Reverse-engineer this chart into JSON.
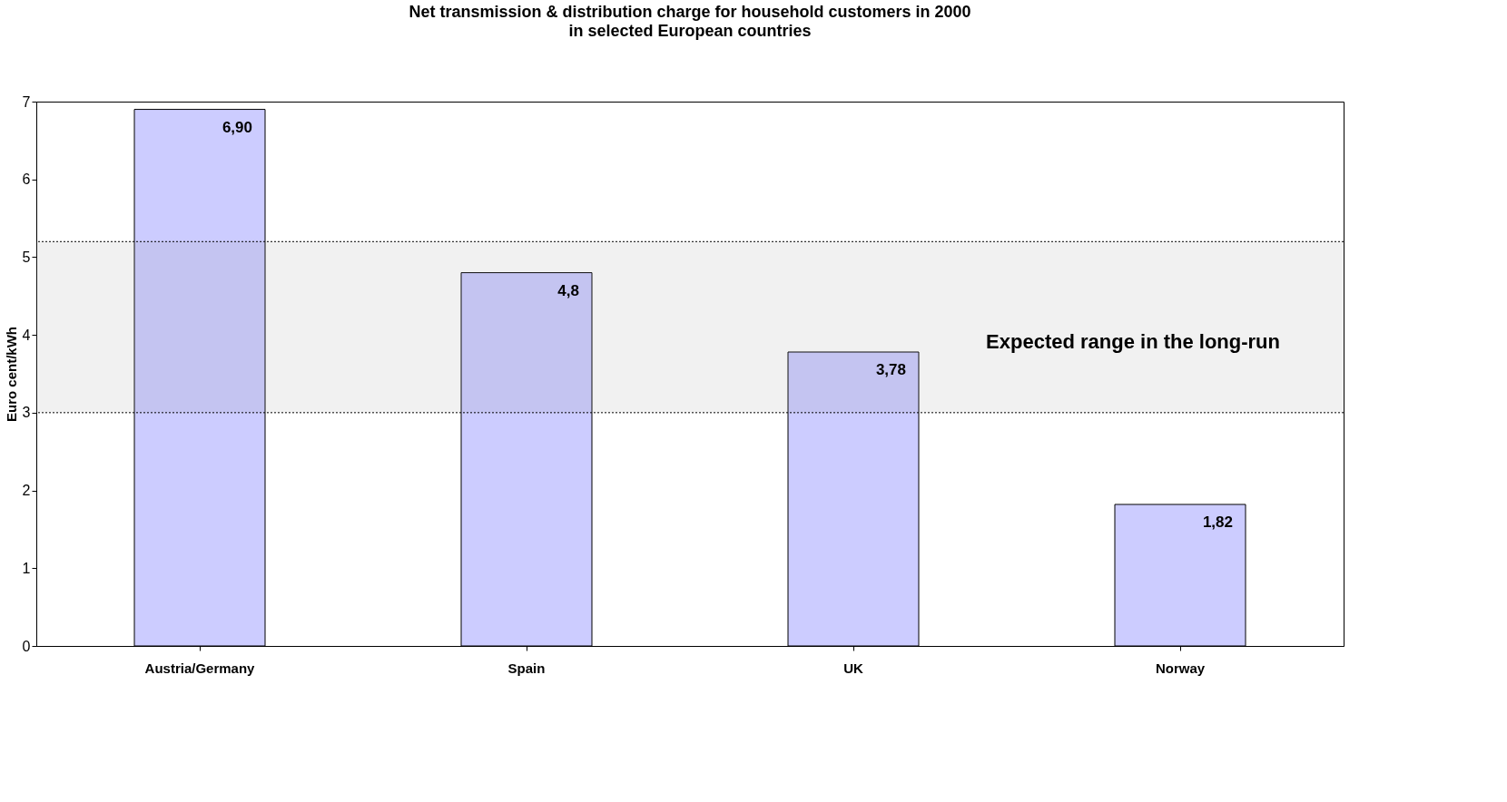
{
  "chart_data": {
    "type": "bar",
    "title": "Net transmission & distribution charge for household customers in 2000",
    "subtitle": "in selected European countries",
    "ylabel": "Euro cent/kWh",
    "categories": [
      "Austria/Germany",
      "Spain",
      "UK",
      "Norway"
    ],
    "values": [
      6.9,
      4.8,
      3.78,
      1.82
    ],
    "value_labels": [
      "6,90",
      "4,8",
      "3,78",
      "1,82"
    ],
    "color": "#ccccff",
    "ylim": [
      0,
      7
    ],
    "yticks": [
      0,
      1,
      2,
      3,
      4,
      5,
      6,
      7
    ],
    "bands": [
      {
        "axis": "y",
        "from": 3,
        "to": 5.2,
        "label": "Expected range in the long-run"
      }
    ]
  }
}
